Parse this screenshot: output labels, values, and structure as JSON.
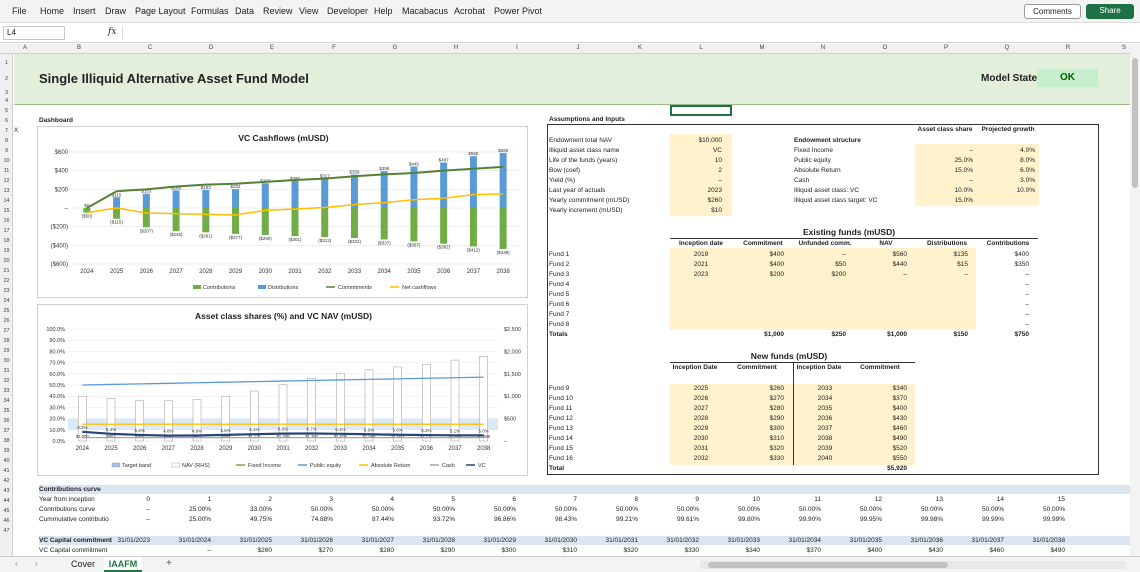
{
  "menu": [
    "File",
    "Home",
    "Insert",
    "Draw",
    "Page Layout",
    "Formulas",
    "Data",
    "Review",
    "View",
    "Developer",
    "Help",
    "Macabacus",
    "Acrobat",
    "Power Pivot"
  ],
  "ribbon": {
    "comments": "Comments",
    "share": "Share"
  },
  "formula_bar": {
    "cell": "L4",
    "fx": "fx"
  },
  "columns": [
    "A",
    "B",
    "C",
    "D",
    "E",
    "F",
    "G",
    "H",
    "I",
    "J",
    "K",
    "L",
    "M",
    "N",
    "O",
    "P",
    "Q",
    "R",
    "S"
  ],
  "rows": [
    "1",
    "2",
    "3",
    "4",
    "5",
    "6",
    "7",
    "8",
    "9",
    "10",
    "11",
    "12",
    "13",
    "14",
    "15",
    "16",
    "17",
    "18",
    "19",
    "20",
    "21",
    "22",
    "23",
    "24",
    "25",
    "26",
    "27",
    "28",
    "29",
    "30",
    "31",
    "32",
    "33",
    "34",
    "35",
    "36",
    "37",
    "38",
    "39",
    "40",
    "41",
    "42",
    "43",
    "44",
    "45",
    "46",
    "47"
  ],
  "sheet": {
    "title": "Single Illiquid Alternative Asset Fund Model",
    "model_state_label": "Model State",
    "model_state": "OK",
    "dashboard": "Dashboard",
    "x_marker": "X"
  },
  "assumptions": {
    "heading": "Assumptions and Inputs",
    "labels": [
      "Endowment total NAV",
      "Illiquid asset class name",
      "Life of the funds (years)",
      "Bow (coef)",
      "Yield (%)",
      "Last year of actuals",
      "Yearly commitment (mUSD)",
      "Yearly increment (mUSD)"
    ],
    "values": [
      "$10,000",
      "VC",
      "10",
      "2",
      "–",
      "2023",
      "$260",
      "$10"
    ]
  },
  "structure": {
    "heading": "Endowment structure",
    "col1": "Asset class share",
    "col2": "Projected growth",
    "rows": [
      {
        "label": "Fixed Income",
        "share": "–",
        "growth": "4.0%"
      },
      {
        "label": "Public equity",
        "share": "25.0%",
        "growth": "8.0%"
      },
      {
        "label": "Absolute Return",
        "share": "15.0%",
        "growth": "6.0%"
      },
      {
        "label": "Cash",
        "share": "–",
        "growth": "3.0%"
      },
      {
        "label": "Illiquid asset class: VC",
        "share": "10.0%",
        "growth": "10.0%"
      },
      {
        "label": "Illiquid asset class target: VC",
        "share": "15.0%",
        "growth": ""
      }
    ]
  },
  "existing": {
    "heading": "Existing funds (mUSD)",
    "headers": [
      "Inception date",
      "Commitment",
      "Unfunded comm.",
      "NAV",
      "Distributions",
      "Contributions"
    ],
    "funds": [
      "Fund 1",
      "Fund 2",
      "Fund 3",
      "Fund 4",
      "Fund 5",
      "Fund 6",
      "Fund 7",
      "Fund 8",
      "Totals"
    ],
    "rows": [
      [
        "2019",
        "$400",
        "–",
        "$560",
        "$135",
        "$400"
      ],
      [
        "2021",
        "$400",
        "$50",
        "$440",
        "$15",
        "$350"
      ],
      [
        "2023",
        "$200",
        "$200",
        "–",
        "–",
        "–"
      ],
      [
        "",
        "",
        "",
        "",
        "",
        "–"
      ],
      [
        "",
        "",
        "",
        "",
        "",
        "–"
      ],
      [
        "",
        "",
        "",
        "",
        "",
        "–"
      ],
      [
        "",
        "",
        "",
        "",
        "",
        "–"
      ],
      [
        "",
        "",
        "",
        "",
        "",
        "–"
      ],
      [
        "",
        "$1,000",
        "$250",
        "$1,000",
        "$150",
        "$750"
      ]
    ]
  },
  "newfunds": {
    "heading": "New funds (mUSD)",
    "headers": [
      "Inception Date",
      "Commitment",
      "Inception Date",
      "Commitment"
    ],
    "funds": [
      "Fund 9",
      "Fund 10",
      "Fund 11",
      "Fund 12",
      "Fund 13",
      "Fund 14",
      "Fund 15",
      "Fund 16",
      "Total"
    ],
    "rows": [
      [
        "2025",
        "$260",
        "2033",
        "$340"
      ],
      [
        "2026",
        "$270",
        "2034",
        "$370"
      ],
      [
        "2027",
        "$280",
        "2035",
        "$400"
      ],
      [
        "2028",
        "$290",
        "2036",
        "$430"
      ],
      [
        "2029",
        "$300",
        "2037",
        "$460"
      ],
      [
        "2030",
        "$310",
        "2038",
        "$490"
      ],
      [
        "2031",
        "$320",
        "2039",
        "$520"
      ],
      [
        "2032",
        "$330",
        "2040",
        "$550"
      ],
      [
        "",
        "",
        "",
        "$5,920"
      ]
    ]
  },
  "curve": {
    "heading": "Contributions curve",
    "labels": [
      "Year from inception",
      "Contributions curve",
      "Cummulative contributio"
    ],
    "years": [
      "0",
      "1",
      "2",
      "3",
      "4",
      "5",
      "6",
      "7",
      "8",
      "9",
      "10",
      "11",
      "12",
      "13",
      "14",
      "15"
    ],
    "curve": [
      "–",
      "25.00%",
      "33.00%",
      "50.00%",
      "50.00%",
      "50.00%",
      "50.00%",
      "50.00%",
      "50.00%",
      "50.00%",
      "50.00%",
      "50.00%",
      "50.00%",
      "50.00%",
      "50.00%",
      "50.00%"
    ],
    "cumulative": [
      "–",
      "25.00%",
      "49.75%",
      "74.88%",
      "87.44%",
      "93.72%",
      "96.86%",
      "98.43%",
      "99.21%",
      "99.61%",
      "99.80%",
      "99.90%",
      "99.95%",
      "99.98%",
      "99.99%",
      "99.99%"
    ]
  },
  "commit": {
    "labels": [
      "VC Capital commitment",
      "VC Capital commitment"
    ],
    "dates": [
      "31/01/2023",
      "31/01/2024",
      "31/01/2025",
      "31/01/2026",
      "31/01/2027",
      "31/01/2028",
      "31/01/2029",
      "31/01/2030",
      "31/01/2031",
      "31/01/2032",
      "31/01/2033",
      "31/01/2034",
      "31/01/2035",
      "31/01/2036",
      "31/01/2037",
      "31/01/2038"
    ],
    "values": [
      "",
      "–",
      "$260",
      "$270",
      "$280",
      "$290",
      "$300",
      "$310",
      "$320",
      "$330",
      "$340",
      "$370",
      "$400",
      "$430",
      "$460",
      "$490"
    ]
  },
  "tabs": [
    "Cover",
    "IAAFM"
  ],
  "chart_data": [
    {
      "type": "bar",
      "title": "VC Cashflows (mUSD)",
      "categories": [
        "2024",
        "2025",
        "2026",
        "2027",
        "2028",
        "2029",
        "2030",
        "2031",
        "2032",
        "2033",
        "2034",
        "2035",
        "2036",
        "2037",
        "2038"
      ],
      "ylim": [
        -600,
        600
      ],
      "yticks": [
        "$600",
        "$400",
        "$200",
        "–",
        "($200)",
        "($400)",
        "($600)"
      ],
      "series": [
        {
          "name": "Contributions",
          "color": "#70ad47",
          "values": [
            -50,
            -115,
            -207,
            -248,
            -261,
            -277,
            -290,
            -301,
            -312,
            -322,
            -337,
            -357,
            -382,
            -412,
            -439
          ]
        },
        {
          "name": "Distributions",
          "color": "#5b9bd5",
          "values": [
            0,
            115,
            153,
            188,
            193,
            202,
            265,
            290,
            317,
            358,
            395,
            445,
            487,
            555,
            590
          ]
        },
        {
          "name": "Commitments",
          "color": "#548235",
          "values": [
            0,
            180,
            200,
            230,
            250,
            260,
            280,
            300,
            315,
            340,
            360,
            375,
            400,
            420,
            440
          ]
        },
        {
          "name": "Net cashflows",
          "color": "#ffc000",
          "values": [
            -50,
            0,
            -54,
            -60,
            -68,
            -75,
            -25,
            -11,
            5,
            36,
            58,
            88,
            105,
            143,
            151
          ]
        }
      ],
      "data_labels": {
        "distributions": [
          "$0",
          "$115",
          "$153",
          "$188",
          "$193",
          "$202",
          "$265",
          "$290",
          "$317",
          "$358",
          "$395",
          "$445",
          "$487",
          "$555",
          "$590"
        ],
        "contributions": [
          "($50)",
          "($115)",
          "($207)",
          "($248)",
          "($261)",
          "($277)",
          "($290)",
          "($301)",
          "($312)",
          "($322)",
          "($337)",
          "($357)",
          "($382)",
          "($412)",
          "($439)"
        ]
      }
    },
    {
      "type": "bar",
      "title": "Asset class shares (%) and VC NAV (mUSD)",
      "categories": [
        "2024",
        "2025",
        "2026",
        "2027",
        "2028",
        "2029",
        "2030",
        "2031",
        "2032",
        "2033",
        "2034",
        "2035",
        "2036",
        "2037",
        "2038"
      ],
      "ylim_left": [
        0,
        100
      ],
      "ylim_right": [
        0,
        2500
      ],
      "yticks_left": [
        "100.0%",
        "90.0%",
        "80.0%",
        "70.0%",
        "60.0%",
        "50.0%",
        "40.0%",
        "30.0%",
        "20.0%",
        "10.0%",
        "0.0%"
      ],
      "yticks_right": [
        "$2,500",
        "$2,000",
        "$1,500",
        "$1,000",
        "$500",
        "–"
      ],
      "series": [
        {
          "name": "Target band",
          "color": "#9dc3e6"
        },
        {
          "name": "NAV (RHS)",
          "color": "#ffffff",
          "values": [
            1000,
            952,
            900,
            898,
            923,
            999,
            1115,
            1259,
            1397,
            1509,
            1588,
            1653,
            1712,
            1806,
            1888
          ]
        },
        {
          "name": "Fixed Income",
          "color": "#70ad47"
        },
        {
          "name": "Public equity",
          "color": "#5b9bd5",
          "values": [
            50,
            50.5,
            51,
            51.5,
            52,
            52.5,
            53,
            53.5,
            54,
            54.5,
            55,
            55.5,
            56,
            56.5,
            57
          ]
        },
        {
          "name": "Absolute Return",
          "color": "#ffc000",
          "values": [
            15,
            15,
            15,
            15,
            15,
            15,
            15,
            15,
            15,
            15,
            15,
            15,
            15,
            15,
            15
          ]
        },
        {
          "name": "Cash",
          "color": "#a5a5a5",
          "values": [
            3,
            3,
            3,
            3,
            3,
            3,
            3,
            3,
            3,
            3,
            3,
            3,
            3,
            3,
            3
          ]
        },
        {
          "name": "VC",
          "color": "#264478",
          "values": [
            8.2,
            6.4,
            5.4,
            4.8,
            4.9,
            5.5,
            6.1,
            6.6,
            6.7,
            6.4,
            6.0,
            5.6,
            5.3,
            5.1,
            5.0
          ]
        }
      ],
      "nav_labels": [
        "$1,000",
        "$952",
        "$900",
        "$898",
        "$923",
        "$999",
        "$1,115",
        "$1,259",
        "$1,397",
        "$1,509",
        "$1,588",
        "$1,653",
        "$1,712",
        "$1,806",
        "$1,888"
      ],
      "vc_labels": [
        "8.2%",
        "6.4%",
        "5.4%",
        "4.8%",
        "4.9%",
        "5.5%",
        "6.1%",
        "6.6%",
        "6.7%",
        "6.4%",
        "6.0%",
        "5.6%",
        "5.3%",
        "5.1%",
        "5.0%"
      ]
    }
  ]
}
